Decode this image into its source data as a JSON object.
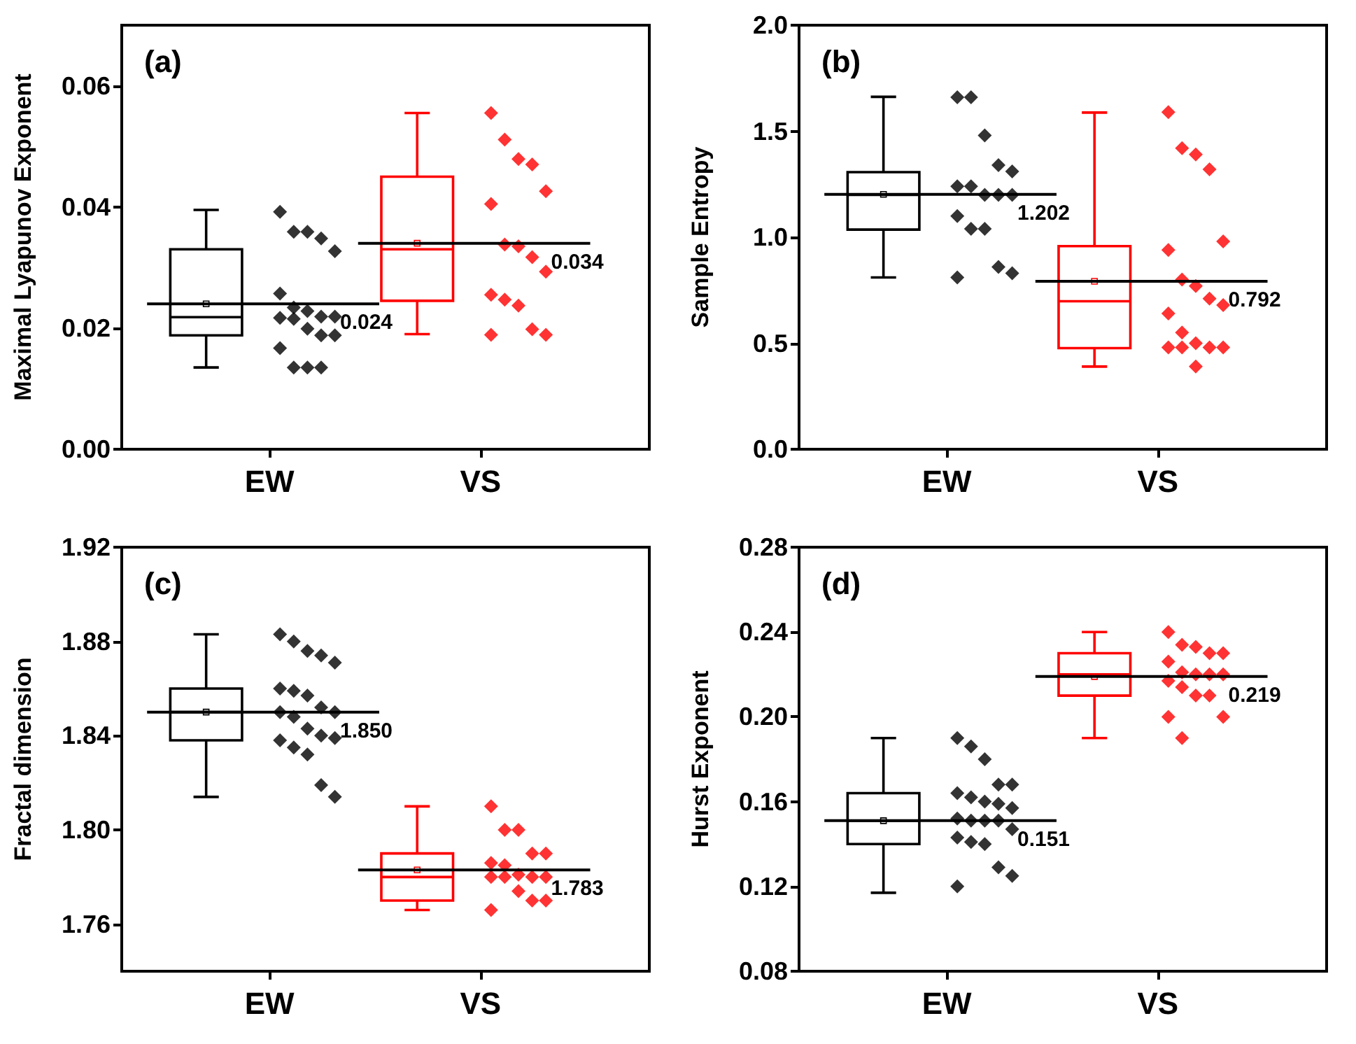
{
  "chart_data": [
    {
      "type": "box",
      "title": "(a)",
      "ylabel": "Maximal Lyapunov Exponent",
      "categories": [
        "EW",
        "VS"
      ],
      "colors": [
        "#000000",
        "#ff0000"
      ],
      "ylim": [
        0,
        0.07
      ],
      "yticks": [
        {
          "value": 0,
          "label": "0.00"
        },
        0.02,
        0.04,
        0.06
      ],
      "grid": false,
      "marker": "diamond",
      "boxes": [
        {
          "low": 0.0135,
          "q1": 0.0188,
          "median": 0.0218,
          "q3": 0.033,
          "high": 0.0395,
          "mean": 0.024
        },
        {
          "low": 0.019,
          "q1": 0.0245,
          "median": 0.033,
          "q3": 0.045,
          "high": 0.0555,
          "mean": 0.034
        }
      ],
      "series": [
        {
          "type": "scatter",
          "color": "#000000",
          "x": [
            "EW",
            "EW",
            "EW",
            "EW",
            "EW",
            "EW",
            "EW",
            "EW",
            "EW",
            "EW",
            "EW",
            "EW",
            "EW",
            "EW",
            "EW",
            "EW",
            "EW",
            "EW",
            "EW"
          ],
          "values": [
            0.0392,
            0.0359,
            0.0359,
            0.0348,
            0.0327,
            0.0257,
            0.0234,
            0.0228,
            0.0219,
            0.0219,
            0.0217,
            0.0215,
            0.0199,
            0.0188,
            0.0188,
            0.0167,
            0.0135,
            0.0135,
            0.0135
          ]
        },
        {
          "type": "scatter",
          "color": "#ff0000",
          "x": [
            "VS",
            "VS",
            "VS",
            "VS",
            "VS",
            "VS",
            "VS",
            "VS",
            "VS",
            "VS",
            "VS",
            "VS",
            "VS",
            "VS",
            "VS",
            "VS"
          ],
          "values": [
            0.0555,
            0.0511,
            0.0479,
            0.047,
            0.0426,
            0.0405,
            0.0338,
            0.0335,
            0.0317,
            0.0293,
            0.0255,
            0.0247,
            0.0237,
            0.0198,
            0.0189,
            0.0189
          ]
        }
      ],
      "ref_lines": [
        {
          "axis": "y",
          "value": 0.024,
          "label": "0.024",
          "color": "#000000"
        },
        {
          "axis": "y",
          "value": 0.034,
          "label": "0.034",
          "color": "#000000"
        }
      ]
    },
    {
      "type": "box",
      "title": "(b)",
      "ylabel": "Sample Entropy",
      "categories": [
        "EW",
        "VS"
      ],
      "colors": [
        "#000000",
        "#ff0000"
      ],
      "ylim": [
        0,
        2
      ],
      "yticks": [
        {
          "value": 0,
          "label": "0.0"
        },
        0.5,
        {
          "value": 1,
          "label": "1.0"
        },
        1.5,
        {
          "value": 2,
          "label": "2.0"
        }
      ],
      "grid": false,
      "marker": "diamond",
      "boxes": [
        {
          "low": 0.81,
          "q1": 1.036,
          "median": 1.2,
          "q3": 1.307,
          "high": 1.662,
          "mean": 1.202
        },
        {
          "low": 0.39,
          "q1": 0.477,
          "median": 0.698,
          "q3": 0.958,
          "high": 1.588,
          "mean": 0.792
        }
      ],
      "series": [
        {
          "type": "scatter",
          "color": "#000000",
          "x": [
            "EW",
            "EW",
            "EW",
            "EW",
            "EW",
            "EW",
            "EW",
            "EW",
            "EW",
            "EW",
            "EW",
            "EW",
            "EW",
            "EW",
            "EW",
            "EW"
          ],
          "values": [
            1.66,
            1.66,
            1.48,
            1.34,
            1.31,
            1.24,
            1.24,
            1.2,
            1.2,
            1.2,
            1.1,
            1.04,
            1.04,
            0.86,
            0.83,
            0.81
          ]
        },
        {
          "type": "scatter",
          "color": "#ff0000",
          "x": [
            "VS",
            "VS",
            "VS",
            "VS",
            "VS",
            "VS",
            "VS",
            "VS",
            "VS",
            "VS",
            "VS",
            "VS",
            "VS",
            "VS",
            "VS",
            "VS",
            "VS",
            "VS"
          ],
          "values": [
            1.59,
            1.42,
            1.39,
            1.32,
            0.98,
            0.94,
            0.8,
            0.77,
            0.71,
            0.68,
            0.64,
            0.55,
            0.5,
            0.48,
            0.48,
            0.48,
            0.48,
            0.39
          ]
        }
      ],
      "ref_lines": [
        {
          "axis": "y",
          "value": 1.202,
          "label": "1.202",
          "color": "#000000"
        },
        {
          "axis": "y",
          "value": 0.792,
          "label": "0.792",
          "color": "#000000"
        }
      ]
    },
    {
      "type": "box",
      "title": "(c)",
      "ylabel": "Fractal dimension",
      "categories": [
        "EW",
        "VS"
      ],
      "colors": [
        "#000000",
        "#ff0000"
      ],
      "ylim": [
        1.74,
        1.92
      ],
      "yticks": [
        1.76,
        {
          "value": 1.8,
          "label": "1.80"
        },
        1.84,
        1.88,
        1.92
      ],
      "grid": false,
      "marker": "diamond",
      "boxes": [
        {
          "low": 1.814,
          "q1": 1.838,
          "median": 1.85,
          "q3": 1.86,
          "high": 1.883,
          "mean": 1.85
        },
        {
          "low": 1.766,
          "q1": 1.77,
          "median": 1.78,
          "q3": 1.79,
          "high": 1.81,
          "mean": 1.783
        }
      ],
      "series": [
        {
          "type": "scatter",
          "color": "#000000",
          "x": [
            "EW",
            "EW",
            "EW",
            "EW",
            "EW",
            "EW",
            "EW",
            "EW",
            "EW",
            "EW",
            "EW",
            "EW",
            "EW",
            "EW",
            "EW",
            "EW",
            "EW",
            "EW",
            "EW",
            "EW"
          ],
          "values": [
            1.883,
            1.88,
            1.876,
            1.874,
            1.871,
            1.86,
            1.859,
            1.857,
            1.852,
            1.85,
            1.85,
            1.848,
            1.843,
            1.84,
            1.839,
            1.838,
            1.835,
            1.832,
            1.819,
            1.814
          ]
        },
        {
          "type": "scatter",
          "color": "#ff0000",
          "x": [
            "VS",
            "VS",
            "VS",
            "VS",
            "VS",
            "VS",
            "VS",
            "VS",
            "VS",
            "VS",
            "VS",
            "VS",
            "VS",
            "VS",
            "VS",
            "VS"
          ],
          "values": [
            1.81,
            1.8,
            1.8,
            1.79,
            1.79,
            1.786,
            1.785,
            1.781,
            1.78,
            1.78,
            1.78,
            1.78,
            1.774,
            1.77,
            1.77,
            1.766
          ]
        }
      ],
      "ref_lines": [
        {
          "axis": "y",
          "value": 1.85,
          "label": "1.850",
          "color": "#000000"
        },
        {
          "axis": "y",
          "value": 1.783,
          "label": "1.783",
          "color": "#000000"
        }
      ]
    },
    {
      "type": "box",
      "title": "(d)",
      "ylabel": "Hurst Exponent",
      "categories": [
        "EW",
        "VS"
      ],
      "colors": [
        "#000000",
        "#ff0000"
      ],
      "ylim": [
        0.08,
        0.28
      ],
      "yticks": [
        0.08,
        0.12,
        0.16,
        {
          "value": 0.2,
          "label": "0.20"
        },
        0.24,
        0.28
      ],
      "grid": false,
      "marker": "diamond",
      "boxes": [
        {
          "low": 0.117,
          "q1": 0.14,
          "median": 0.151,
          "q3": 0.164,
          "high": 0.19,
          "mean": 0.151
        },
        {
          "low": 0.19,
          "q1": 0.21,
          "median": 0.22,
          "q3": 0.23,
          "high": 0.24,
          "mean": 0.219
        }
      ],
      "series": [
        {
          "type": "scatter",
          "color": "#000000",
          "x": [
            "EW",
            "EW",
            "EW",
            "EW",
            "EW",
            "EW",
            "EW",
            "EW",
            "EW",
            "EW",
            "EW",
            "EW",
            "EW",
            "EW",
            "EW",
            "EW",
            "EW",
            "EW",
            "EW",
            "EW",
            "EW"
          ],
          "values": [
            0.19,
            0.186,
            0.18,
            0.168,
            0.168,
            0.164,
            0.162,
            0.16,
            0.159,
            0.157,
            0.152,
            0.151,
            0.151,
            0.151,
            0.147,
            0.143,
            0.141,
            0.14,
            0.129,
            0.125,
            0.12
          ]
        },
        {
          "type": "scatter",
          "color": "#ff0000",
          "x": [
            "VS",
            "VS",
            "VS",
            "VS",
            "VS",
            "VS",
            "VS",
            "VS",
            "VS",
            "VS",
            "VS",
            "VS",
            "VS",
            "VS",
            "VS",
            "VS",
            "VS"
          ],
          "values": [
            0.24,
            0.234,
            0.233,
            0.23,
            0.23,
            0.226,
            0.221,
            0.22,
            0.22,
            0.22,
            0.217,
            0.214,
            0.21,
            0.21,
            0.2,
            0.2,
            0.19
          ]
        }
      ],
      "ref_lines": [
        {
          "axis": "y",
          "value": 0.151,
          "label": "0.151",
          "color": "#000000"
        },
        {
          "axis": "y",
          "value": 0.219,
          "label": "0.219",
          "color": "#000000"
        }
      ]
    }
  ]
}
